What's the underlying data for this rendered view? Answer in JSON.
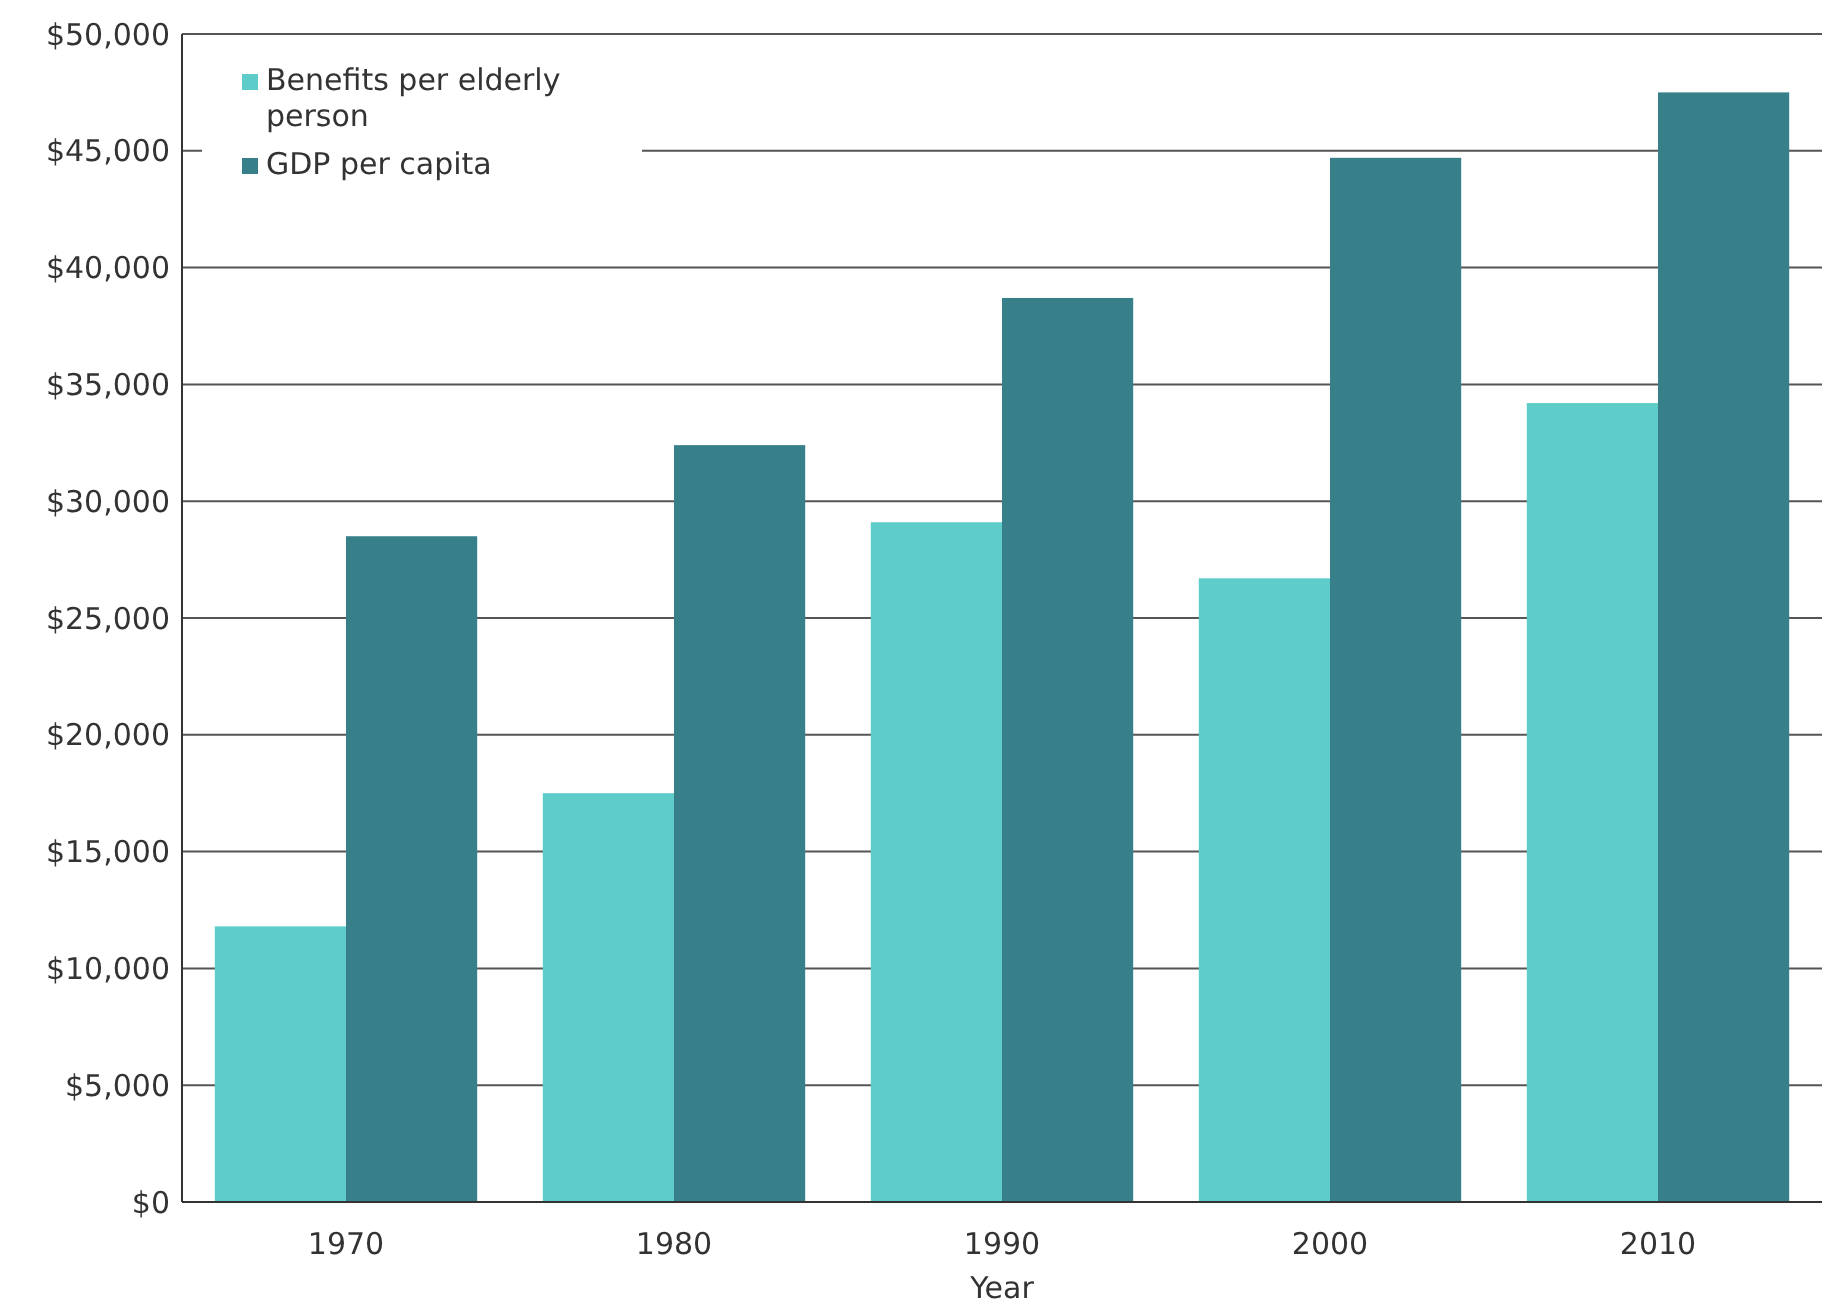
{
  "chart_data": {
    "type": "bar",
    "xlabel": "Year",
    "categories": [
      "1970",
      "1980",
      "1990",
      "2000",
      "2010"
    ],
    "series": [
      {
        "name": "Benefits per elderly person",
        "color": "#5ecdc9",
        "values": [
          11800,
          17500,
          29100,
          26700,
          34200
        ]
      },
      {
        "name": "GDP per capita",
        "color": "#37808a",
        "values": [
          28500,
          32400,
          38700,
          44700,
          47500
        ]
      }
    ],
    "ylim": [
      0,
      50000
    ],
    "yticks": [
      {
        "value": 0,
        "label": "$0"
      },
      {
        "value": 5000,
        "label": "$5,000"
      },
      {
        "value": 10000,
        "label": "$10,000"
      },
      {
        "value": 15000,
        "label": "$15,000"
      },
      {
        "value": 20000,
        "label": "$20,000"
      },
      {
        "value": 25000,
        "label": "$25,000"
      },
      {
        "value": 30000,
        "label": "$30,000"
      },
      {
        "value": 35000,
        "label": "$35,000"
      },
      {
        "value": 40000,
        "label": "$40,000"
      },
      {
        "value": 45000,
        "label": "$45,000"
      },
      {
        "value": 50000,
        "label": "$50,000"
      }
    ],
    "grid": "y",
    "legend": "top left"
  }
}
